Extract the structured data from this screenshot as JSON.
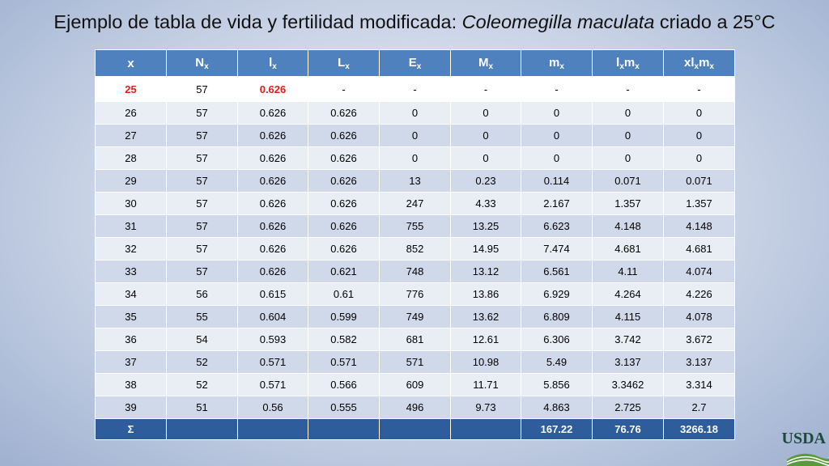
{
  "title": {
    "prefix": "Ejemplo de tabla de vida y fertilidad modificada: ",
    "species": "Coleomegilla maculata",
    "suffix": " criado a 25°C"
  },
  "table": {
    "headers": [
      {
        "base": "x",
        "sub": ""
      },
      {
        "base": "N",
        "sub": "x"
      },
      {
        "base": "l",
        "sub": "x"
      },
      {
        "base": "L",
        "sub": "x"
      },
      {
        "base": "E",
        "sub": "x"
      },
      {
        "base": "M",
        "sub": "x"
      },
      {
        "base": "m",
        "sub": "x"
      },
      {
        "base": "l",
        "sub": "x",
        "base2": "m",
        "sub2": "x"
      },
      {
        "base": "xl",
        "sub": "x",
        "base2": "m",
        "sub2": "x"
      }
    ],
    "rows": [
      [
        "25",
        "57",
        "0.626",
        "-",
        "-",
        "-",
        "-",
        "-",
        "-"
      ],
      [
        "26",
        "57",
        "0.626",
        "0.626",
        "0",
        "0",
        "0",
        "0",
        "0"
      ],
      [
        "27",
        "57",
        "0.626",
        "0.626",
        "0",
        "0",
        "0",
        "0",
        "0"
      ],
      [
        "28",
        "57",
        "0.626",
        "0.626",
        "0",
        "0",
        "0",
        "0",
        "0"
      ],
      [
        "29",
        "57",
        "0.626",
        "0.626",
        "13",
        "0.23",
        "0.114",
        "0.071",
        "0.071"
      ],
      [
        "30",
        "57",
        "0.626",
        "0.626",
        "247",
        "4.33",
        "2.167",
        "1.357",
        "1.357"
      ],
      [
        "31",
        "57",
        "0.626",
        "0.626",
        "755",
        "13.25",
        "6.623",
        "4.148",
        "4.148"
      ],
      [
        "32",
        "57",
        "0.626",
        "0.626",
        "852",
        "14.95",
        "7.474",
        "4.681",
        "4.681"
      ],
      [
        "33",
        "57",
        "0.626",
        "0.621",
        "748",
        "13.12",
        "6.561",
        "4.11",
        "4.074"
      ],
      [
        "34",
        "56",
        "0.615",
        "0.61",
        "776",
        "13.86",
        "6.929",
        "4.264",
        "4.226"
      ],
      [
        "35",
        "55",
        "0.604",
        "0.599",
        "749",
        "13.62",
        "6.809",
        "4.115",
        "4.078"
      ],
      [
        "36",
        "54",
        "0.593",
        "0.582",
        "681",
        "12.61",
        "6.306",
        "3.742",
        "3.672"
      ],
      [
        "37",
        "52",
        "0.571",
        "0.571",
        "571",
        "10.98",
        "5.49",
        "3.137",
        "3.137"
      ],
      [
        "38",
        "52",
        "0.571",
        "0.566",
        "609",
        "11.71",
        "5.856",
        "3.3462",
        "3.314"
      ],
      [
        "39",
        "51",
        "0.56",
        "0.555",
        "496",
        "9.73",
        "4.863",
        "2.725",
        "2.7"
      ]
    ],
    "footer": [
      "Σ",
      "",
      "",
      "",
      "",
      "",
      "167.22",
      "76.76",
      "3266.18"
    ]
  },
  "logo": {
    "text": "USDA",
    "colors": {
      "dark": "#1b4b3a",
      "green": "#5a9a3c"
    }
  },
  "colors": {
    "header_bg": "#4e81bd",
    "footer_bg": "#2f5c9b",
    "highlight_red": "#e31b1b"
  }
}
